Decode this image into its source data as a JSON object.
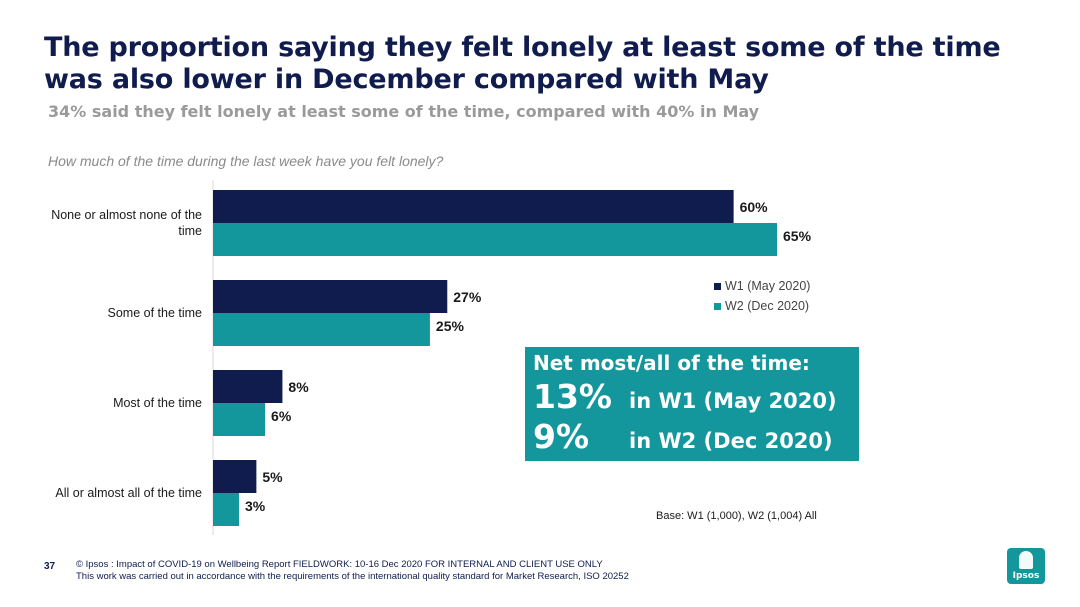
{
  "title": "The proportion saying they felt lonely at least some of the time was also lower in December compared with May",
  "subtitle": "34% said they felt lonely at least some of the time, compared with 40% in May",
  "question": "How much of the time during the last week have you felt lonely?",
  "chart_data": {
    "type": "bar",
    "orientation": "horizontal",
    "categories": [
      "None or almost none of the time",
      "Some of the time",
      "Most of the time",
      "All or almost all of the time"
    ],
    "series": [
      {
        "name": "W1 (May 2020)",
        "values": [
          60,
          27,
          8,
          5
        ],
        "labels": [
          "60%",
          "27%",
          "8%",
          "5%"
        ],
        "color": "#0f1c4d"
      },
      {
        "name": "W2 (Dec 2020)",
        "values": [
          65,
          25,
          6,
          3
        ],
        "labels": [
          "65%",
          "25%",
          "6%",
          "3%"
        ],
        "color": "#14979c"
      }
    ],
    "xlim": [
      0,
      100
    ],
    "grid": false,
    "legend_position": "right"
  },
  "net_box": {
    "heading": "Net most/all of the time:",
    "rows": [
      {
        "value": "13%",
        "text": "in W1 (May 2020)"
      },
      {
        "value": "9%",
        "text": "in W2 (Dec 2020)"
      }
    ]
  },
  "base_note": "Base: W1 (1,000), W2 (1,004) All",
  "footer": {
    "page_number": "37",
    "line1": "© Ipsos : Impact of COVID-19 on Wellbeing Report FIELDWORK: 10-16 Dec 2020 FOR INTERNAL AND CLIENT USE ONLY",
    "line2": "This work was carried out in accordance with the requirements of the international quality standard for Market Research, ISO 20252"
  },
  "logo": {
    "text": "Ipsos",
    "color": "#14979c"
  }
}
